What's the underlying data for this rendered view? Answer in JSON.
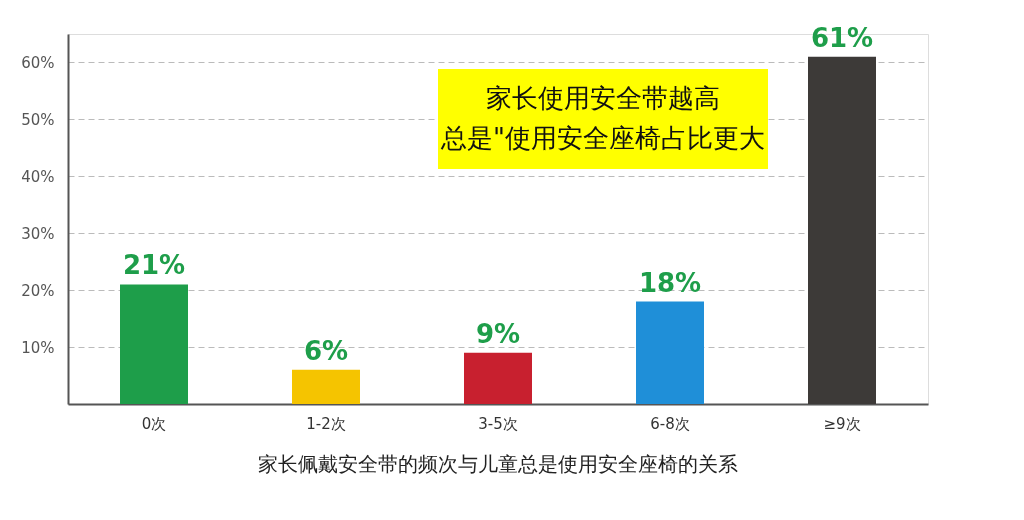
{
  "chart_data": {
    "type": "bar",
    "title": "家长佩戴安全带的频次与儿童总是使用安全座椅的关系",
    "categories": [
      "0次",
      "1-2次",
      "3-5次",
      "6-8次",
      "≥9次"
    ],
    "values": [
      21,
      6,
      9,
      18,
      61
    ],
    "colors": [
      "#1e9e4a",
      "#f5c400",
      "#c8202f",
      "#1f8fd8",
      "#3d3a38"
    ],
    "value_labels": [
      "21%",
      "6%",
      "9%",
      "18%",
      "61%"
    ],
    "ylim": [
      0,
      65
    ],
    "yticks": [
      {
        "value": 10,
        "label": "10%"
      },
      {
        "value": 20,
        "label": "20%"
      },
      {
        "value": 30,
        "label": "30%"
      },
      {
        "value": 40,
        "label": "40%"
      },
      {
        "value": 50,
        "label": "50%"
      },
      {
        "value": 60,
        "label": "60%"
      }
    ],
    "grid": "y",
    "annotations": [
      "家长使用安全带越高",
      "总是\"使用安全座椅占比更大"
    ]
  }
}
